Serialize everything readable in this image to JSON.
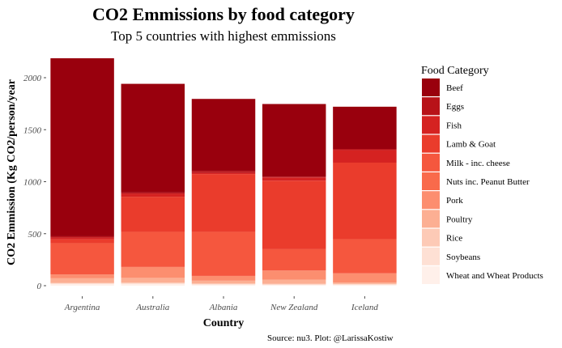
{
  "chart_data": {
    "type": "bar",
    "stacked": true,
    "title": "CO2 Emmissions by food category",
    "subtitle": "Top 5 countries with highest emmissions",
    "xlabel": "Country",
    "ylabel": "CO2 Emmission (Kg CO2/person/year",
    "caption": "Source: nu3. Plot: @LarissaKostiw",
    "ylim": [
      0,
      2200
    ],
    "yticks": [
      0,
      500,
      1000,
      1500,
      2000
    ],
    "grid": false,
    "legend_position": "right",
    "legend_title": "Food Category",
    "categories": [
      "Argentina",
      "Australia",
      "Albania",
      "New Zealand",
      "Iceland"
    ],
    "series": [
      {
        "name": "Beef",
        "color": "#99000d",
        "values": [
          1712,
          1045,
          693,
          698,
          406
        ]
      },
      {
        "name": "Eggs",
        "color": "#b81218",
        "values": [
          13,
          12,
          19,
          8,
          11
        ]
      },
      {
        "name": "Fish",
        "color": "#d52221",
        "values": [
          17,
          29,
          11,
          31,
          121
        ]
      },
      {
        "name": "Lamb & Goat",
        "color": "#ea3c2c",
        "values": [
          36,
          338,
          555,
          659,
          736
        ]
      },
      {
        "name": "Milk - inc. cheese",
        "color": "#f5573e",
        "values": [
          301,
          337,
          424,
          205,
          328
        ]
      },
      {
        "name": "Nuts inc. Peanut Butter",
        "color": "#f96a4b",
        "values": [
          0,
          0,
          0,
          0,
          0
        ]
      },
      {
        "name": "Pork",
        "color": "#fc8e6f",
        "values": [
          37,
          105,
          46,
          89,
          89
        ]
      },
      {
        "name": "Poultry",
        "color": "#fcaf93",
        "values": [
          45,
          45,
          27,
          38,
          13
        ]
      },
      {
        "name": "Rice",
        "color": "#fdcab6",
        "values": [
          6,
          10,
          8,
          8,
          5
        ]
      },
      {
        "name": "Soybeans",
        "color": "#fee0d4",
        "values": [
          0,
          0,
          0,
          0,
          0
        ]
      },
      {
        "name": "Wheat and Wheat Products",
        "color": "#fff0ea",
        "values": [
          20,
          20,
          13,
          11,
          12
        ]
      }
    ]
  }
}
